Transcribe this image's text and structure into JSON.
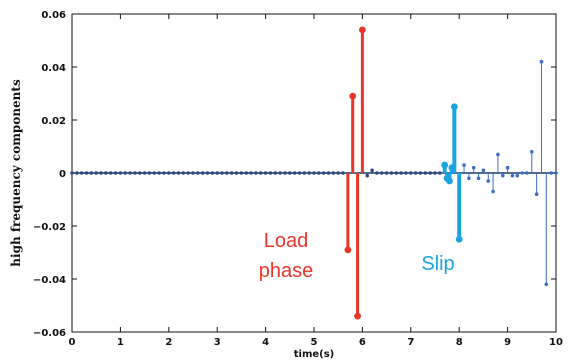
{
  "chart_data": {
    "type": "stem",
    "title": "",
    "xlabel": "time(s)",
    "ylabel": "high frequency components",
    "xlim": [
      0,
      10
    ],
    "ylim": [
      -0.06,
      0.06
    ],
    "xticks": [
      "0",
      "1",
      "2",
      "3",
      "4",
      "5",
      "6",
      "7",
      "8",
      "9",
      "10"
    ],
    "yticks": [
      "0.06",
      "0.04",
      "0.02",
      "0",
      "−0.02",
      "−0.04",
      "−0.06"
    ],
    "grid": false,
    "colors": {
      "baseline": "#1f3a6b",
      "markers": "#2b4a82",
      "noise_stems": "#3a6fc4",
      "load_phase": "#e8362a",
      "slip": "#1aa3e0"
    },
    "series": [
      {
        "x": [
          0,
          0.1,
          0.2,
          0.3,
          0.4,
          0.5,
          0.6,
          0.7,
          0.8,
          0.9,
          1.0,
          1.1,
          1.2,
          1.3,
          1.4,
          1.5,
          1.6,
          1.7,
          1.8,
          1.9,
          2.0,
          2.1,
          2.2,
          2.3,
          2.4,
          2.5,
          2.6,
          2.7,
          2.8,
          2.9,
          3.0,
          3.1,
          3.2,
          3.3,
          3.4,
          3.5,
          3.6,
          3.7,
          3.8,
          3.9,
          4.0,
          4.1,
          4.2,
          4.3,
          4.4,
          4.5,
          4.6,
          4.7,
          4.8,
          4.9,
          5.0,
          5.1,
          5.2,
          5.3,
          5.4,
          5.5,
          5.6,
          6.1,
          6.2,
          6.3,
          6.4,
          6.5,
          6.6,
          6.7,
          6.8,
          6.9,
          7.0,
          7.1,
          7.2,
          7.3,
          7.4,
          7.5,
          7.6
        ],
        "values": [
          0,
          0,
          0,
          0,
          0,
          0,
          0,
          0,
          0,
          0,
          0,
          0,
          0,
          0,
          0,
          0,
          0,
          0,
          0,
          0,
          0,
          0,
          0,
          0,
          0,
          0,
          0,
          0,
          0,
          0,
          0,
          0,
          0,
          0,
          0,
          0,
          0,
          0,
          0,
          0,
          0,
          0,
          0,
          0,
          0,
          0,
          0,
          0,
          0,
          0,
          0,
          0,
          0,
          0,
          0,
          0,
          0,
          -0.001,
          0.001,
          0,
          0,
          0,
          0,
          0,
          0,
          0,
          0,
          0,
          0,
          0,
          0,
          0,
          0
        ],
        "color_key": "markers",
        "stem_width": 1
      },
      {
        "x": [
          5.7,
          5.8,
          5.9,
          6.0
        ],
        "values": [
          -0.029,
          0.029,
          -0.054,
          0.054
        ],
        "color_key": "load_phase",
        "stem_width": 3
      },
      {
        "x": [
          7.7,
          7.75,
          7.8,
          7.85,
          7.9,
          8.0
        ],
        "values": [
          0.003,
          -0.002,
          -0.003,
          0.002,
          0.025,
          -0.025
        ],
        "color_key": "slip",
        "stem_width": 4
      },
      {
        "x": [
          8.1,
          8.2,
          8.3,
          8.4,
          8.5,
          8.6,
          8.7,
          8.8,
          8.9,
          9.0,
          9.1,
          9.2,
          9.3,
          9.4,
          9.5,
          9.6,
          9.7,
          9.8,
          9.9,
          10.0
        ],
        "values": [
          0.003,
          -0.002,
          0.002,
          -0.002,
          0.001,
          -0.003,
          -0.007,
          0.007,
          -0.001,
          0.002,
          -0.001,
          -0.001,
          0,
          0,
          0.008,
          -0.008,
          0.042,
          -0.042,
          0,
          0
        ],
        "color_key": "noise_stems",
        "stem_width": 1
      }
    ],
    "annotations": [
      {
        "lines": [
          "Load",
          "phase"
        ],
        "color_key": "load_phase"
      },
      {
        "lines": [
          "Slip"
        ],
        "color_key": "slip"
      }
    ]
  }
}
